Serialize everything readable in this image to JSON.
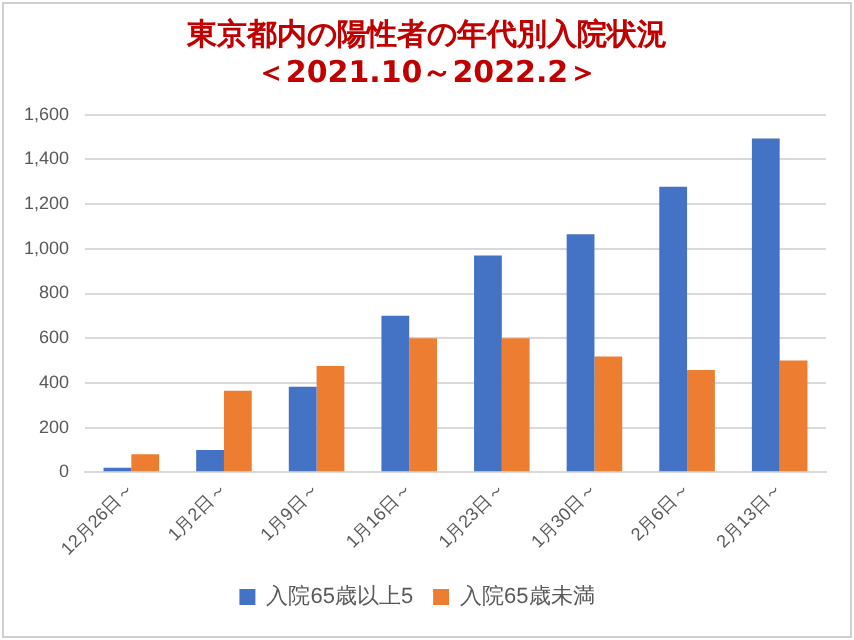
{
  "chart_data": {
    "type": "bar",
    "title": "東京都内の陽性者の年代別入院状況",
    "subtitle": "＜2021.10～2022.2＞",
    "categories": [
      "12月26日～",
      "1月2日～",
      "1月9日～",
      "1月16日～",
      "1月23日～",
      "1月30日～",
      "2月6日～",
      "2月13日～"
    ],
    "series": [
      {
        "name": "入院65歳以上5",
        "color": "#4472c4",
        "values": [
          20,
          100,
          383,
          700,
          970,
          1065,
          1278,
          1494
        ]
      },
      {
        "name": "入院65歳未満",
        "color": "#ed7d31",
        "values": [
          80,
          365,
          475,
          600,
          600,
          518,
          458,
          500
        ]
      }
    ],
    "ylim": [
      0,
      1600
    ],
    "yticks": [
      {
        "value": 0,
        "label": "0"
      },
      {
        "value": 200,
        "label": "200"
      },
      {
        "value": 400,
        "label": "400"
      },
      {
        "value": 600,
        "label": "600"
      },
      {
        "value": 800,
        "label": "800"
      },
      {
        "value": 1000,
        "label": "1,000"
      },
      {
        "value": 1200,
        "label": "1,200"
      },
      {
        "value": 1400,
        "label": "1,400"
      },
      {
        "value": 1600,
        "label": "1,600"
      }
    ],
    "grid": "y",
    "legend": "bottom"
  }
}
